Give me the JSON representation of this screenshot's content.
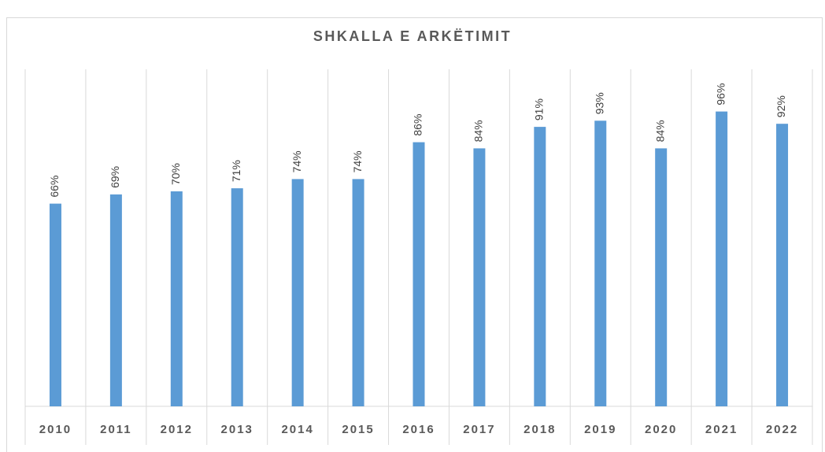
{
  "chart_data": {
    "type": "bar",
    "title": "SHKALLA E ARKËTIMIT",
    "categories": [
      "2010",
      "2011",
      "2012",
      "2013",
      "2014",
      "2015",
      "2016",
      "2017",
      "2018",
      "2019",
      "2020",
      "2021",
      "2022"
    ],
    "values": [
      66,
      69,
      70,
      71,
      74,
      74,
      86,
      84,
      91,
      93,
      84,
      96,
      92
    ],
    "value_labels": [
      "66%",
      "69%",
      "70%",
      "71%",
      "74%",
      "74%",
      "86%",
      "84%",
      "91%",
      "93%",
      "84%",
      "96%",
      "92%"
    ],
    "color": "#5b9bd5",
    "ylim": [
      0,
      100
    ]
  }
}
